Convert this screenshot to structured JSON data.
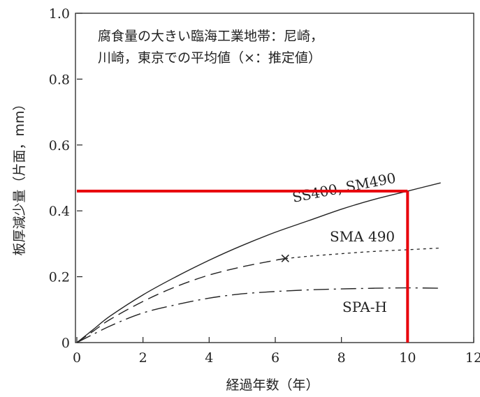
{
  "chart_data": {
    "type": "line",
    "title": "",
    "xlabel": "経過年数（年）",
    "ylabel": "板厚減少量（片面，mm）",
    "xlim": [
      0,
      12
    ],
    "ylim": [
      0,
      1.0
    ],
    "xticks": [
      0,
      2,
      4,
      6,
      8,
      10,
      12
    ],
    "yticks": [
      0,
      0.2,
      0.4,
      0.6,
      0.8,
      1.0
    ],
    "xtick_labels": [
      "0",
      "2",
      "4",
      "6",
      "8",
      "10",
      "12"
    ],
    "ytick_labels": [
      "0",
      "0.2",
      "0.4",
      "0.6",
      "0.8",
      "1.0"
    ],
    "grid": false,
    "annotation_lines": [
      "腐食量の大きい臨海工業地帯：尼崎，",
      "川崎，東京での平均値（×：推定値）"
    ],
    "series": [
      {
        "name": "SS400, SM490",
        "style": "solid",
        "x": [
          0,
          0.5,
          1,
          2,
          3,
          4,
          5,
          6,
          7,
          8,
          9,
          10,
          11
        ],
        "values": [
          0,
          0.04,
          0.08,
          0.145,
          0.2,
          0.25,
          0.295,
          0.335,
          0.37,
          0.405,
          0.435,
          0.46,
          0.485
        ]
      },
      {
        "name": "SMA 490",
        "style": "dashed",
        "x": [
          0,
          0.5,
          1,
          2,
          3,
          4,
          5,
          6,
          6.3,
          7,
          8,
          9,
          10,
          11
        ],
        "values": [
          0,
          0.035,
          0.07,
          0.125,
          0.17,
          0.205,
          0.23,
          0.25,
          0.255,
          0.262,
          0.27,
          0.277,
          0.282,
          0.287
        ],
        "estimated_from_x": 6.3,
        "marker_point": {
          "x": 6.3,
          "y": 0.255,
          "label": "×"
        }
      },
      {
        "name": "SPA-H",
        "style": "dashdot",
        "x": [
          0,
          1,
          2,
          3,
          4,
          5,
          6,
          7,
          8,
          9,
          10,
          11
        ],
        "values": [
          0,
          0.05,
          0.09,
          0.115,
          0.135,
          0.148,
          0.155,
          0.16,
          0.163,
          0.165,
          0.166,
          0.165
        ]
      }
    ],
    "highlight": {
      "color": "#e8000b",
      "x": 10,
      "y": 0.46
    }
  }
}
